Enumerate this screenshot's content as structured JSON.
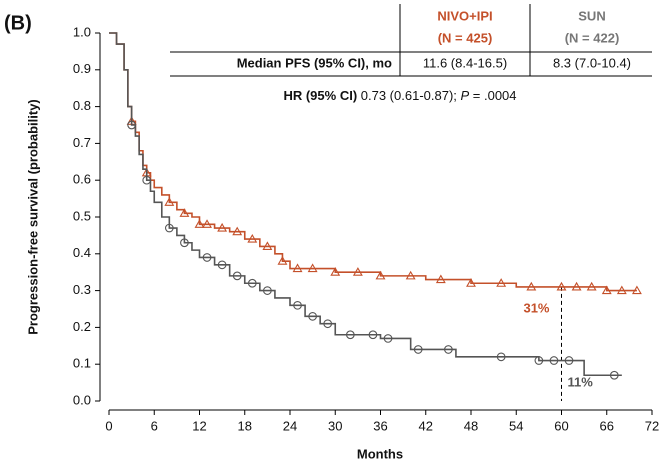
{
  "panel_label": "(B)",
  "table": {
    "columns": [
      {
        "name": "NIVO+IPI",
        "n": "(N = 425)"
      },
      {
        "name": "SUN",
        "n": "(N = 422)"
      }
    ],
    "row_label": "Median PFS (95% CI), mo",
    "row_values": [
      "11.6 (8.4-16.5)",
      "8.3 (7.0-10.4)"
    ],
    "hr": {
      "label": "HR (95% CI)",
      "value": " 0.73 (0.61-0.87); ",
      "p": "P",
      "p_value": " = .0004"
    }
  },
  "chart_data": {
    "type": "line",
    "step": true,
    "x_label": "Months",
    "y_label": "Progression-free survival (probability)",
    "xlim": [
      0,
      72
    ],
    "xticks": [
      0,
      6,
      12,
      18,
      24,
      30,
      36,
      42,
      48,
      54,
      60,
      66,
      72
    ],
    "ylim": [
      0,
      1
    ],
    "yticks": [
      {
        "value": 0,
        "label": "0.0"
      },
      0.1,
      0.2,
      0.3,
      0.4,
      0.5,
      0.6,
      0.7,
      0.8,
      0.9,
      {
        "value": 1,
        "label": "1.0"
      }
    ],
    "grid": false,
    "series": [
      {
        "name": "NIVO+IPI",
        "color": "#c4502a",
        "marker": "triangle",
        "x": [
          0,
          1,
          2,
          2.5,
          3,
          3.5,
          4,
          4.5,
          5,
          5.5,
          6,
          7,
          8,
          9,
          10,
          11,
          12,
          14,
          16,
          18,
          20,
          22,
          23,
          24,
          30,
          36,
          42,
          48,
          54,
          60,
          66,
          70
        ],
        "values": [
          1.0,
          0.97,
          0.9,
          0.8,
          0.76,
          0.73,
          0.68,
          0.64,
          0.62,
          0.6,
          0.58,
          0.56,
          0.54,
          0.52,
          0.51,
          0.5,
          0.48,
          0.47,
          0.46,
          0.44,
          0.42,
          0.4,
          0.38,
          0.36,
          0.35,
          0.34,
          0.33,
          0.32,
          0.31,
          0.31,
          0.3,
          0.3
        ],
        "censored": {
          "x": [
            3,
            5,
            8,
            10,
            12,
            13,
            15,
            17,
            19,
            21,
            23,
            25,
            27,
            30,
            33,
            36,
            40,
            44,
            48,
            52,
            56,
            60,
            62,
            64,
            66,
            68,
            70
          ],
          "values": [
            0.76,
            0.62,
            0.54,
            0.51,
            0.48,
            0.48,
            0.47,
            0.46,
            0.44,
            0.42,
            0.38,
            0.36,
            0.36,
            0.35,
            0.35,
            0.34,
            0.34,
            0.33,
            0.32,
            0.32,
            0.31,
            0.31,
            0.31,
            0.31,
            0.3,
            0.3,
            0.3
          ]
        },
        "annotation": "31%"
      },
      {
        "name": "SUN",
        "color": "#555555",
        "marker": "circle",
        "x": [
          0,
          1,
          2,
          2.5,
          3,
          3.5,
          4,
          4.5,
          5,
          5.5,
          6,
          7,
          8,
          9,
          10,
          11,
          12,
          14,
          16,
          18,
          20,
          22,
          24,
          26,
          28,
          30,
          36,
          40,
          42,
          46,
          50,
          57,
          63,
          64,
          68
        ],
        "values": [
          1.0,
          0.97,
          0.9,
          0.8,
          0.75,
          0.72,
          0.67,
          0.63,
          0.6,
          0.57,
          0.54,
          0.5,
          0.47,
          0.45,
          0.43,
          0.41,
          0.39,
          0.37,
          0.34,
          0.32,
          0.3,
          0.28,
          0.26,
          0.23,
          0.21,
          0.18,
          0.17,
          0.14,
          0.14,
          0.12,
          0.12,
          0.11,
          0.07,
          0.07,
          0.07
        ],
        "censored": {
          "x": [
            3,
            5,
            8,
            10,
            13,
            15,
            17,
            19,
            21,
            25,
            27,
            29,
            32,
            35,
            37,
            41,
            45,
            52,
            57,
            59,
            61,
            67
          ],
          "values": [
            0.75,
            0.6,
            0.47,
            0.43,
            0.39,
            0.37,
            0.34,
            0.32,
            0.3,
            0.26,
            0.23,
            0.21,
            0.18,
            0.18,
            0.17,
            0.14,
            0.14,
            0.12,
            0.11,
            0.11,
            0.11,
            0.07
          ]
        },
        "annotation": "11%"
      }
    ],
    "reference_line": {
      "x": 60,
      "y": 0.31
    }
  }
}
